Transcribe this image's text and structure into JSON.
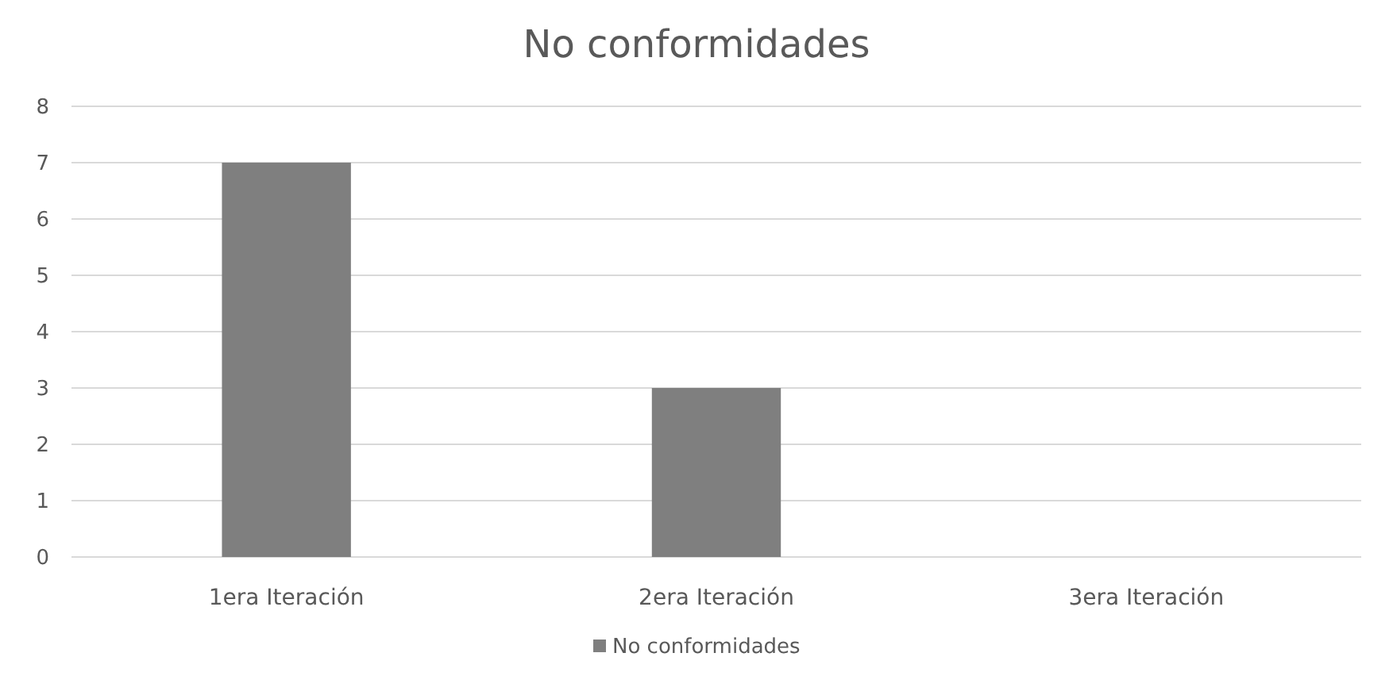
{
  "chart_data": {
    "type": "bar",
    "title": "No conformidades",
    "categories": [
      "1era Iteración",
      "2era Iteración",
      "3era Iteración"
    ],
    "series": [
      {
        "name": "No conformidades",
        "color": "#7f7f7f",
        "values": [
          7,
          3,
          0
        ]
      }
    ],
    "ylim": [
      0,
      8
    ],
    "yticks": [
      0,
      1,
      2,
      3,
      4,
      5,
      6,
      7,
      8
    ],
    "grid": "y",
    "legend": "bottom"
  }
}
